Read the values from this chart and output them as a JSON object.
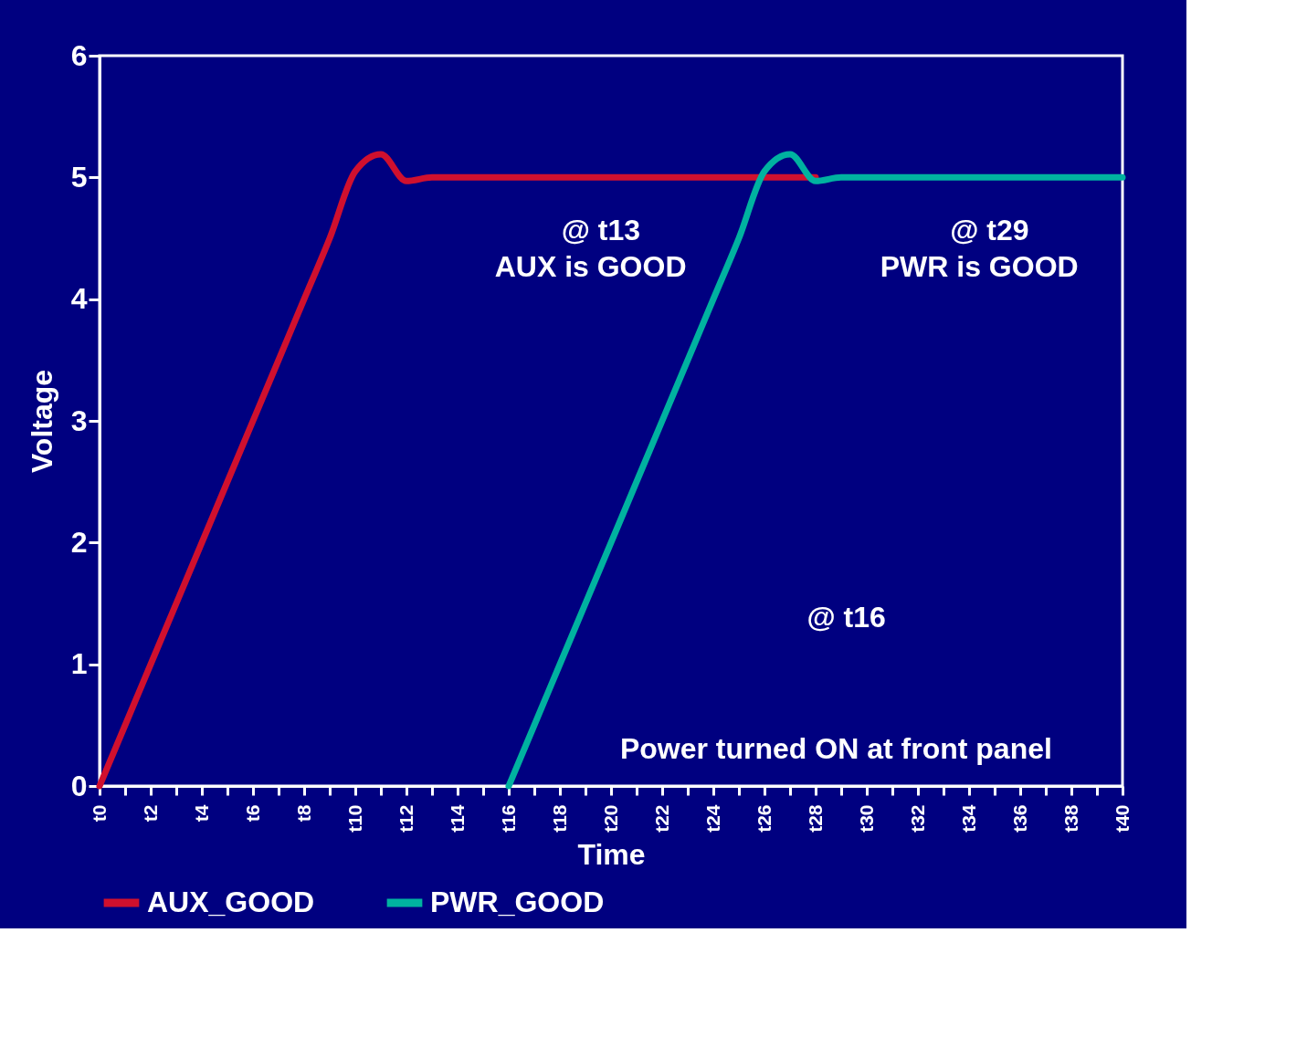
{
  "chart_data": {
    "type": "line",
    "xlabel": "Time",
    "ylabel": "Voltage",
    "categories": [
      "t0",
      null,
      "t2",
      null,
      "t4",
      null,
      "t6",
      null,
      "t8",
      null,
      "t10",
      null,
      "t12",
      null,
      "t14",
      null,
      "t16",
      null,
      "t18",
      null,
      "t20",
      null,
      "t22",
      null,
      "t24",
      null,
      "t26",
      null,
      "t28",
      null,
      "t30",
      null,
      "t32",
      null,
      "t34",
      null,
      "t36",
      null,
      "t38",
      null,
      "t40"
    ],
    "ylim": [
      0,
      6
    ],
    "yticks": [
      0,
      1,
      2,
      3,
      4,
      5,
      6
    ],
    "grid": false,
    "legend": "bottom",
    "marker": "none",
    "line_style": "solid",
    "series": [
      {
        "name": "AUX_GOOD",
        "color": "#d0102e",
        "values": [
          0,
          0.5,
          1.0,
          1.5,
          2.0,
          2.5,
          3.0,
          3.5,
          4.0,
          4.5,
          5.05,
          5.19,
          4.97,
          5.0,
          5.0,
          5.0,
          5.0,
          5.0,
          5.0,
          5.0,
          5.0,
          5.0,
          5.0,
          5.0,
          5.0,
          5.0,
          5.0,
          5.0,
          5.0,
          null,
          null,
          null,
          null,
          null,
          null,
          null,
          null,
          null,
          null,
          null,
          null
        ]
      },
      {
        "name": "PWR_GOOD",
        "color": "#00b2a0",
        "values": [
          null,
          null,
          null,
          null,
          null,
          null,
          null,
          null,
          null,
          null,
          null,
          null,
          null,
          null,
          null,
          null,
          0,
          0.5,
          1.0,
          1.5,
          2.0,
          2.5,
          3.0,
          3.5,
          4.0,
          4.5,
          5.05,
          5.19,
          4.97,
          5.0,
          5.0,
          5.0,
          5.0,
          5.0,
          5.0,
          5.0,
          5.0,
          5.0,
          5.0,
          5.0,
          5.0
        ]
      }
    ],
    "annotations": [
      "@ t13",
      "AUX is GOOD",
      "@ t29",
      "PWR is GOOD",
      "@ t16",
      "Power turned ON at front panel"
    ]
  }
}
